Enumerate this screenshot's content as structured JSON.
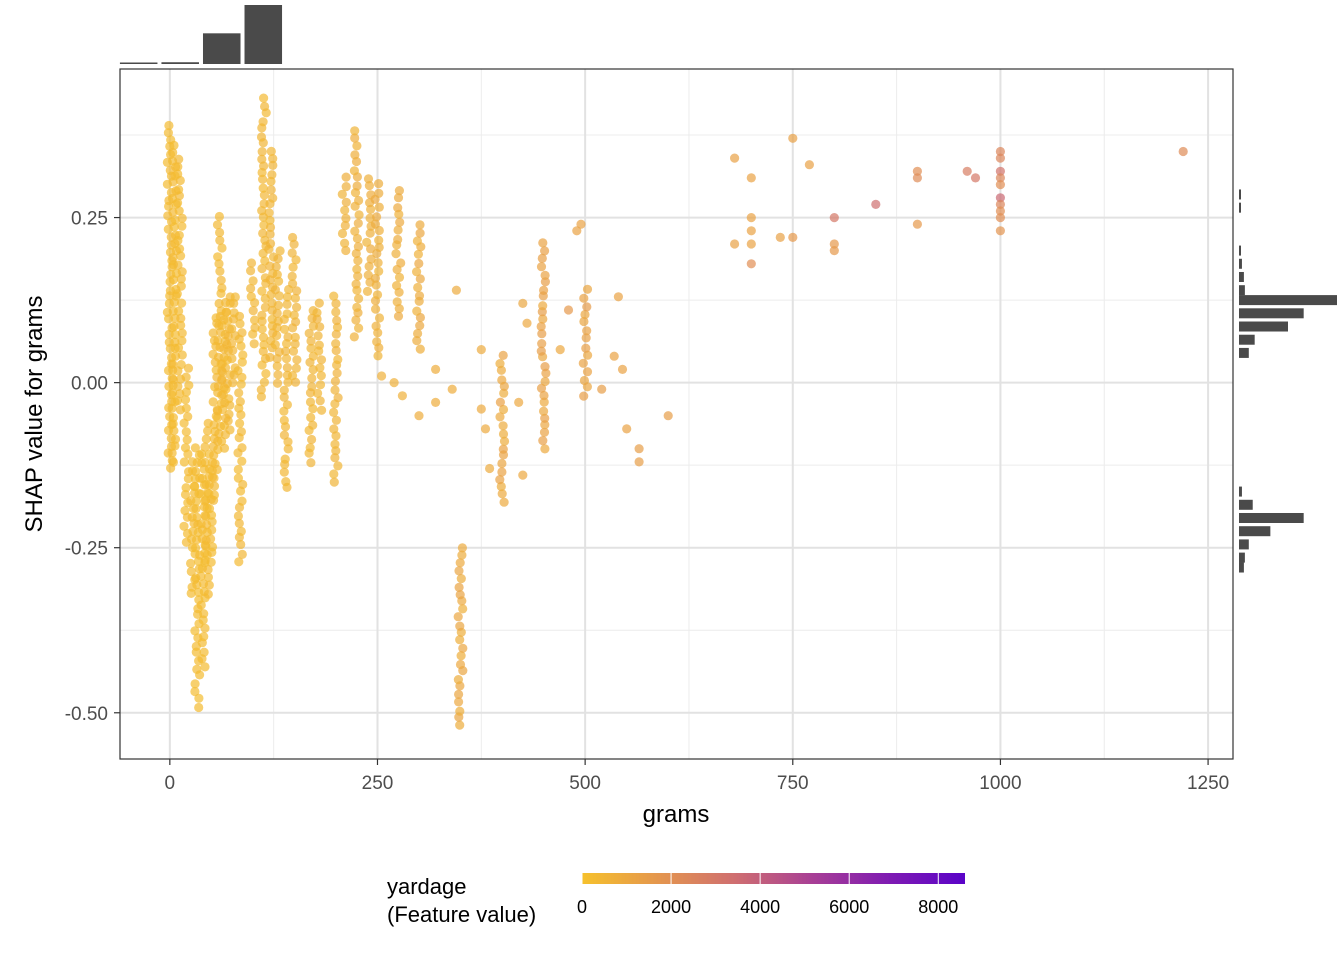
{
  "chart_data": {
    "type": "scatter",
    "title": "",
    "xlabel": "grams",
    "ylabel": "SHAP value for grams",
    "xlim": [
      -60,
      1280
    ],
    "ylim": [
      -0.57,
      0.475
    ],
    "x_ticks": [
      0,
      250,
      500,
      750,
      1000,
      1250
    ],
    "x_tick_labels": [
      "0",
      "250",
      "500",
      "750",
      "1000",
      "1250"
    ],
    "y_ticks": [
      -0.5,
      -0.25,
      0.0,
      0.25
    ],
    "y_tick_labels": [
      "-0.50",
      "-0.25",
      "0.00",
      "0.25"
    ],
    "grid": true,
    "legend": {
      "title_line1": "yardage",
      "title_line2": "(Feature value)",
      "position": "bottom",
      "type": "colorbar",
      "range": [
        0,
        8600
      ],
      "ticks": [
        0,
        2000,
        4000,
        6000,
        8000
      ],
      "tick_labels": [
        "0",
        "2000",
        "4000",
        "6000",
        "8000"
      ],
      "colors": [
        "#f6c12c",
        "#e4964e",
        "#cf6e70",
        "#a83f95",
        "#7f1bb2",
        "#5a03c8"
      ]
    },
    "point_color_note": "color encodes yardage",
    "clusters": [
      {
        "x": 0,
        "y_min": -0.13,
        "y_max": 0.39,
        "yardage": 250
      },
      {
        "x": 5,
        "y_min": -0.12,
        "y_max": 0.36,
        "yardage": 260
      },
      {
        "x": 12,
        "y_min": -0.04,
        "y_max": 0.34,
        "yardage": 280
      },
      {
        "x": 20,
        "y_min": -0.24,
        "y_max": 0.02,
        "yardage": 260
      },
      {
        "x": 28,
        "y_min": -0.32,
        "y_max": -0.12,
        "yardage": 240
      },
      {
        "x": 33,
        "y_min": -0.49,
        "y_max": -0.1,
        "yardage": 220
      },
      {
        "x": 40,
        "y_min": -0.43,
        "y_max": -0.11,
        "yardage": 230
      },
      {
        "x": 45,
        "y_min": -0.32,
        "y_max": -0.06,
        "yardage": 260
      },
      {
        "x": 50,
        "y_min": -0.27,
        "y_max": -0.12,
        "yardage": 250
      },
      {
        "x": 55,
        "y_min": -0.18,
        "y_max": 0.1,
        "yardage": 300
      },
      {
        "x": 60,
        "y_min": -0.1,
        "y_max": 0.25,
        "yardage": 320
      },
      {
        "x": 65,
        "y_min": -0.1,
        "y_max": 0.12,
        "yardage": 330
      },
      {
        "x": 70,
        "y_min": -0.07,
        "y_max": 0.13,
        "yardage": 340
      },
      {
        "x": 77,
        "y_min": 0.0,
        "y_max": 0.13,
        "yardage": 360
      },
      {
        "x": 85,
        "y_min": -0.27,
        "y_max": 0.1,
        "yardage": 320
      },
      {
        "x": 100,
        "y_min": 0.06,
        "y_max": 0.18,
        "yardage": 400
      },
      {
        "x": 113,
        "y_min": -0.02,
        "y_max": 0.43,
        "yardage": 380
      },
      {
        "x": 122,
        "y_min": 0.04,
        "y_max": 0.35,
        "yardage": 420
      },
      {
        "x": 130,
        "y_min": 0.0,
        "y_max": 0.2,
        "yardage": 450
      },
      {
        "x": 140,
        "y_min": -0.16,
        "y_max": 0.14,
        "yardage": 430
      },
      {
        "x": 150,
        "y_min": 0.0,
        "y_max": 0.22,
        "yardage": 470
      },
      {
        "x": 170,
        "y_min": -0.12,
        "y_max": 0.11,
        "yardage": 450
      },
      {
        "x": 180,
        "y_min": -0.04,
        "y_max": 0.12,
        "yardage": 480
      },
      {
        "x": 200,
        "y_min": -0.15,
        "y_max": 0.13,
        "yardage": 520
      },
      {
        "x": 210,
        "y_min": 0.2,
        "y_max": 0.31,
        "yardage": 600
      },
      {
        "x": 225,
        "y_min": 0.07,
        "y_max": 0.38,
        "yardage": 650
      },
      {
        "x": 240,
        "y_min": 0.14,
        "y_max": 0.31,
        "yardage": 650
      },
      {
        "x": 250,
        "y_min": 0.04,
        "y_max": 0.3,
        "yardage": 700
      },
      {
        "x": 275,
        "y_min": 0.1,
        "y_max": 0.29,
        "yardage": 750
      },
      {
        "x": 300,
        "y_min": 0.05,
        "y_max": 0.24,
        "yardage": 800
      },
      {
        "x": 350,
        "y_min": -0.52,
        "y_max": -0.25,
        "yardage": 900
      },
      {
        "x": 400,
        "y_min": -0.18,
        "y_max": 0.04,
        "yardage": 1000
      },
      {
        "x": 450,
        "y_min": -0.1,
        "y_max": 0.21,
        "yardage": 1100
      },
      {
        "x": 500,
        "y_min": -0.02,
        "y_max": 0.14,
        "yardage": 1200
      }
    ],
    "points": [
      {
        "x": 255,
        "y": 0.01,
        "yardage": 700
      },
      {
        "x": 270,
        "y": 0.0,
        "yardage": 700
      },
      {
        "x": 280,
        "y": -0.02,
        "yardage": 700
      },
      {
        "x": 300,
        "y": -0.05,
        "yardage": 800
      },
      {
        "x": 320,
        "y": -0.03,
        "yardage": 800
      },
      {
        "x": 320,
        "y": 0.02,
        "yardage": 800
      },
      {
        "x": 340,
        "y": -0.01,
        "yardage": 800
      },
      {
        "x": 345,
        "y": 0.14,
        "yardage": 900
      },
      {
        "x": 375,
        "y": -0.04,
        "yardage": 950
      },
      {
        "x": 380,
        "y": -0.07,
        "yardage": 950
      },
      {
        "x": 385,
        "y": -0.13,
        "yardage": 900
      },
      {
        "x": 375,
        "y": 0.05,
        "yardage": 900
      },
      {
        "x": 425,
        "y": 0.12,
        "yardage": 1100
      },
      {
        "x": 430,
        "y": 0.09,
        "yardage": 1000
      },
      {
        "x": 425,
        "y": -0.14,
        "yardage": 1000
      },
      {
        "x": 420,
        "y": -0.03,
        "yardage": 1000
      },
      {
        "x": 480,
        "y": 0.11,
        "yardage": 1600
      },
      {
        "x": 470,
        "y": 0.05,
        "yardage": 1000
      },
      {
        "x": 495,
        "y": 0.24,
        "yardage": 1200
      },
      {
        "x": 490,
        "y": 0.23,
        "yardage": 1200
      },
      {
        "x": 520,
        "y": -0.01,
        "yardage": 1400
      },
      {
        "x": 535,
        "y": 0.04,
        "yardage": 1200
      },
      {
        "x": 540,
        "y": 0.13,
        "yardage": 1200
      },
      {
        "x": 545,
        "y": 0.02,
        "yardage": 1200
      },
      {
        "x": 550,
        "y": -0.07,
        "yardage": 1200
      },
      {
        "x": 565,
        "y": -0.1,
        "yardage": 1400
      },
      {
        "x": 565,
        "y": -0.12,
        "yardage": 1400
      },
      {
        "x": 600,
        "y": -0.05,
        "yardage": 1400
      },
      {
        "x": 680,
        "y": 0.34,
        "yardage": 1300
      },
      {
        "x": 680,
        "y": 0.21,
        "yardage": 1300
      },
      {
        "x": 700,
        "y": 0.31,
        "yardage": 1200
      },
      {
        "x": 700,
        "y": 0.25,
        "yardage": 1200
      },
      {
        "x": 700,
        "y": 0.23,
        "yardage": 1200
      },
      {
        "x": 700,
        "y": 0.21,
        "yardage": 1200
      },
      {
        "x": 700,
        "y": 0.18,
        "yardage": 2000
      },
      {
        "x": 735,
        "y": 0.22,
        "yardage": 1300
      },
      {
        "x": 750,
        "y": 0.37,
        "yardage": 1300
      },
      {
        "x": 750,
        "y": 0.22,
        "yardage": 1600
      },
      {
        "x": 770,
        "y": 0.33,
        "yardage": 1300
      },
      {
        "x": 800,
        "y": 0.25,
        "yardage": 3000
      },
      {
        "x": 800,
        "y": 0.21,
        "yardage": 1600
      },
      {
        "x": 800,
        "y": 0.2,
        "yardage": 1600
      },
      {
        "x": 850,
        "y": 0.27,
        "yardage": 3400
      },
      {
        "x": 900,
        "y": 0.32,
        "yardage": 2000
      },
      {
        "x": 900,
        "y": 0.31,
        "yardage": 2200
      },
      {
        "x": 900,
        "y": 0.24,
        "yardage": 1600
      },
      {
        "x": 960,
        "y": 0.32,
        "yardage": 2800
      },
      {
        "x": 970,
        "y": 0.31,
        "yardage": 3000
      },
      {
        "x": 1000,
        "y": 0.35,
        "yardage": 2400
      },
      {
        "x": 1000,
        "y": 0.34,
        "yardage": 2400
      },
      {
        "x": 1000,
        "y": 0.32,
        "yardage": 3200
      },
      {
        "x": 1000,
        "y": 0.31,
        "yardage": 2400
      },
      {
        "x": 1000,
        "y": 0.3,
        "yardage": 2000
      },
      {
        "x": 1000,
        "y": 0.28,
        "yardage": 3600
      },
      {
        "x": 1000,
        "y": 0.27,
        "yardage": 2400
      },
      {
        "x": 1000,
        "y": 0.26,
        "yardage": 2000
      },
      {
        "x": 1000,
        "y": 0.25,
        "yardage": 2000
      },
      {
        "x": 1000,
        "y": 0.23,
        "yardage": 1800
      },
      {
        "x": 1220,
        "y": 0.35,
        "yardage": 2200
      }
    ],
    "x_marginal_histogram": {
      "bin_edges": [
        -62.5,
        -12.5,
        37.5,
        87.5,
        137.5
      ],
      "relative_heights": [
        0.0,
        0.03,
        0.52,
        1.0
      ]
    },
    "y_marginal_histogram": {
      "bins": [
        {
          "y": 0.285,
          "rel": 0.02
        },
        {
          "y": 0.265,
          "rel": 0.02
        },
        {
          "y": 0.2,
          "rel": 0.02
        },
        {
          "y": 0.18,
          "rel": 0.03
        },
        {
          "y": 0.16,
          "rel": 0.05
        },
        {
          "y": 0.14,
          "rel": 0.06
        },
        {
          "y": 0.125,
          "rel": 1.0
        },
        {
          "y": 0.105,
          "rel": 0.66
        },
        {
          "y": 0.085,
          "rel": 0.5
        },
        {
          "y": 0.065,
          "rel": 0.16
        },
        {
          "y": 0.045,
          "rel": 0.1
        },
        {
          "y": -0.165,
          "rel": 0.03
        },
        {
          "y": -0.185,
          "rel": 0.14
        },
        {
          "y": -0.205,
          "rel": 0.66
        },
        {
          "y": -0.225,
          "rel": 0.32
        },
        {
          "y": -0.245,
          "rel": 0.1
        },
        {
          "y": -0.265,
          "rel": 0.06
        },
        {
          "y": -0.28,
          "rel": 0.05
        }
      ]
    }
  }
}
